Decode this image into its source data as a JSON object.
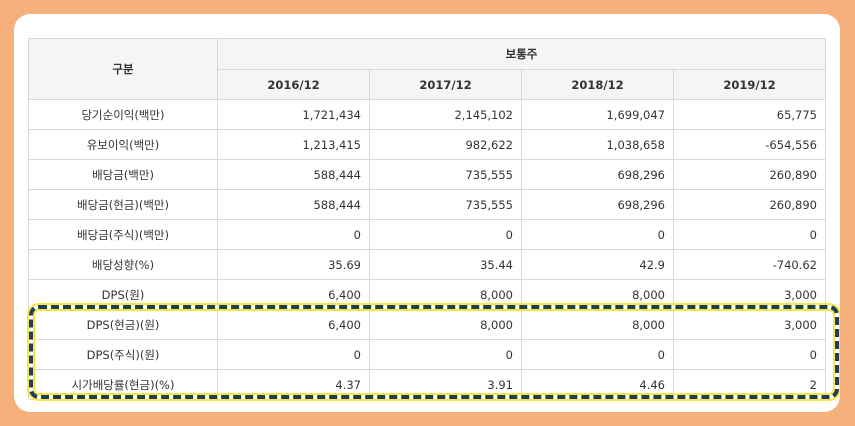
{
  "table": {
    "header_category": "구분",
    "header_group": "보통주",
    "years": [
      "2016/12",
      "2017/12",
      "2018/12",
      "2019/12"
    ],
    "rows": [
      {
        "label": "당기순이익(백만)",
        "values": [
          "1,721,434",
          "2,145,102",
          "1,699,047",
          "65,775"
        ]
      },
      {
        "label": "유보이익(백만)",
        "values": [
          "1,213,415",
          "982,622",
          "1,038,658",
          "-654,556"
        ]
      },
      {
        "label": "배당금(백만)",
        "values": [
          "588,444",
          "735,555",
          "698,296",
          "260,890"
        ]
      },
      {
        "label": "배당금(현금)(백만)",
        "values": [
          "588,444",
          "735,555",
          "698,296",
          "260,890"
        ]
      },
      {
        "label": "배당금(주식)(백만)",
        "values": [
          "0",
          "0",
          "0",
          "0"
        ]
      },
      {
        "label": "배당성향(%)",
        "values": [
          "35.69",
          "35.44",
          "42.9",
          "-740.62"
        ]
      },
      {
        "label": "DPS(원)",
        "values": [
          "6,400",
          "8,000",
          "8,000",
          "3,000"
        ]
      },
      {
        "label": "DPS(현금)(원)",
        "values": [
          "6,400",
          "8,000",
          "8,000",
          "3,000"
        ]
      },
      {
        "label": "DPS(주식)(원)",
        "values": [
          "0",
          "0",
          "0",
          "0"
        ]
      },
      {
        "label": "시가배당률(현금)(%)",
        "values": [
          "4.37",
          "3.91",
          "4.46",
          "2"
        ]
      }
    ]
  },
  "colors": {
    "background": "#f5b07c",
    "highlight_border": "#1f3c5e",
    "highlight_glow": "#f5e93a",
    "header_bg": "#f5f5f5"
  }
}
